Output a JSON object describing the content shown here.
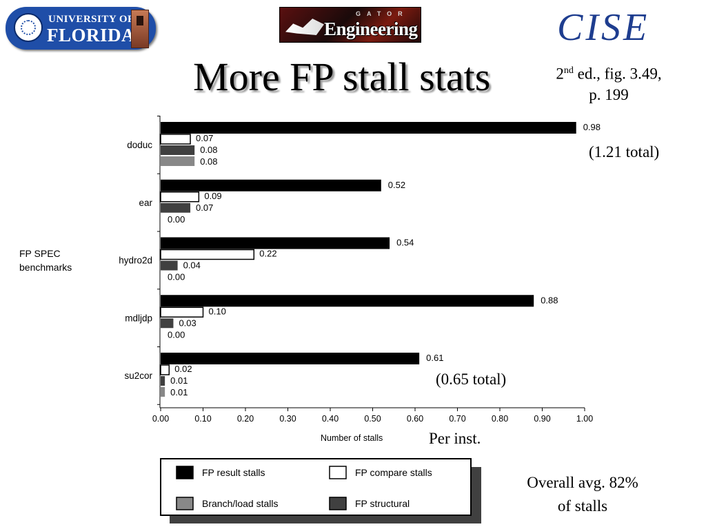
{
  "header": {
    "uf_logo_top": "UNIVERSITY OF",
    "uf_logo_bottom": "FLORIDA",
    "ge_logo_small": "GATOR",
    "ge_logo_main": "Engineering",
    "cise_logo": "CISE"
  },
  "slide": {
    "title": "More FP stall stats",
    "reference_line1_num": "2",
    "reference_line1_sup": "nd",
    "reference_line1_rest": " ed., fig. 3.49,",
    "reference_line2": "p. 199",
    "note_doduc_total": "(1.21 total)",
    "note_su2cor_total": "(0.65 total)",
    "per_inst": "Per inst.",
    "overall_line1": "Overall avg. 82%",
    "overall_line2": "of stalls"
  },
  "chart_data": {
    "type": "bar",
    "orientation": "horizontal",
    "categories": [
      "doduc",
      "ear",
      "hydro2d",
      "mdljdp",
      "su2cor"
    ],
    "series": [
      {
        "name": "FP result stalls",
        "color": "#000000",
        "values": [
          0.98,
          0.52,
          0.54,
          0.88,
          0.61
        ]
      },
      {
        "name": "FP compare stalls",
        "color": "#ffffff",
        "values": [
          0.07,
          0.09,
          0.22,
          0.1,
          0.02
        ]
      },
      {
        "name": "FP structural",
        "color": "#404040",
        "values": [
          0.08,
          0.07,
          0.04,
          0.03,
          0.01
        ]
      },
      {
        "name": "Branch/load stalls",
        "color": "#888888",
        "values": [
          0.08,
          0.0,
          0.0,
          0.0,
          0.01
        ]
      }
    ],
    "value_labels": [
      [
        "0.98",
        "0.07",
        "0.08",
        "0.08"
      ],
      [
        "0.52",
        "0.09",
        "0.07",
        "0.00"
      ],
      [
        "0.54",
        "0.22",
        "0.04",
        "0.00"
      ],
      [
        "0.88",
        "0.10",
        "0.03",
        "0.00"
      ],
      [
        "0.61",
        "0.02",
        "0.01",
        "0.01"
      ]
    ],
    "xlabel": "Number of stalls",
    "ylabel_line1": "FP SPEC",
    "ylabel_line2": "benchmarks",
    "xlim": [
      0,
      1.0
    ],
    "xticks": [
      "0.00",
      "0.10",
      "0.20",
      "0.30",
      "0.40",
      "0.50",
      "0.60",
      "0.70",
      "0.80",
      "0.90",
      "1.00"
    ],
    "legend": {
      "placement": "bottom",
      "items": [
        {
          "label": "FP result stalls",
          "color": "#000000"
        },
        {
          "label": "FP compare stalls",
          "color": "#ffffff"
        },
        {
          "label": "Branch/load stalls",
          "color": "#888888"
        },
        {
          "label": "FP structural",
          "color": "#404040"
        }
      ]
    },
    "grid": false
  }
}
